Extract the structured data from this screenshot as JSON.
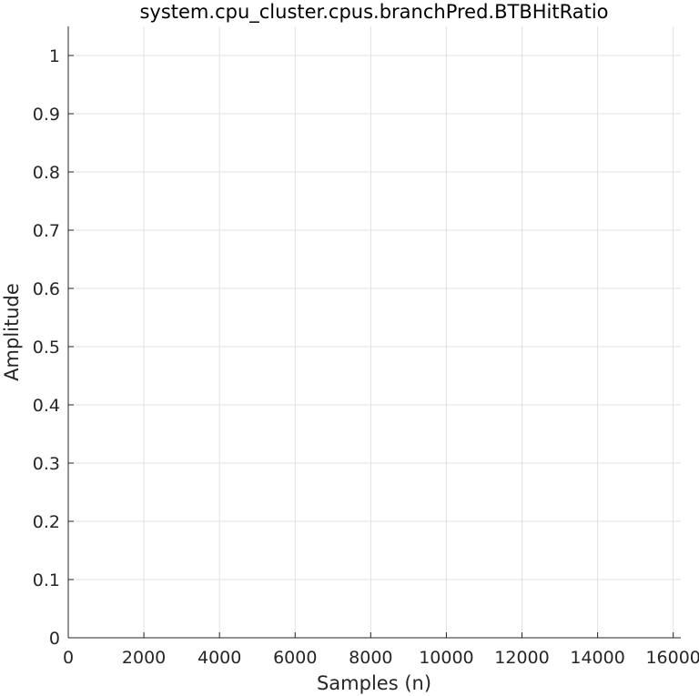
{
  "chart_data": {
    "type": "line",
    "title": "system.cpu_cluster.cpus.branchPred.BTBHitRatio",
    "xlabel": "Samples (n)",
    "ylabel": "Amplitude",
    "xlim": [
      0,
      16200
    ],
    "ylim": [
      0,
      1.05
    ],
    "x_ticks": [
      0,
      2000,
      4000,
      6000,
      8000,
      10000,
      12000,
      14000,
      16000
    ],
    "y_ticks": [
      0,
      0.1,
      0.2,
      0.3,
      0.4,
      0.5,
      0.6,
      0.7,
      0.8,
      0.9,
      1
    ],
    "x_tick_labels": [
      "0",
      "2000",
      "4000",
      "6000",
      "8000",
      "10000",
      "12000",
      "14000",
      "16000"
    ],
    "y_tick_labels": [
      "0",
      "0.1",
      "0.2",
      "0.3",
      "0.4",
      "0.5",
      "0.6",
      "0.7",
      "0.8",
      "0.9",
      "1"
    ],
    "grid": true,
    "series": [
      {
        "x": [],
        "y": []
      }
    ],
    "colors": {
      "axis": "#262626",
      "grid": "#e1e1e1",
      "line": "#0072bd"
    }
  }
}
